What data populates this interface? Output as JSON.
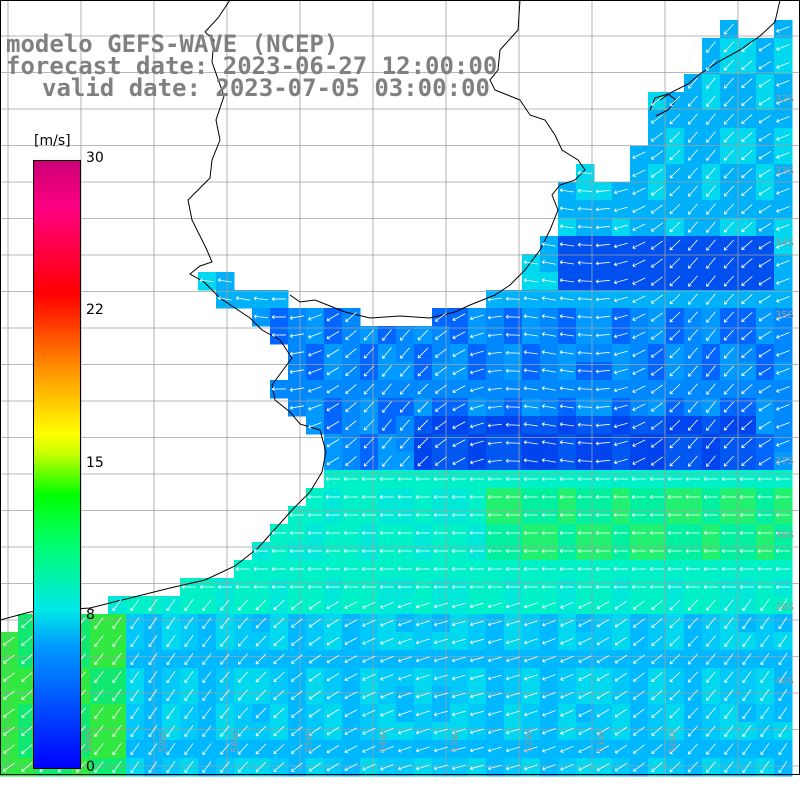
{
  "title": {
    "line1": "modelo GEFS-WAVE (NCEP)",
    "line2": "forecast date: 2023-06-27 12:00:00",
    "line3": "valid date: 2023-07-05 03:00:00"
  },
  "colorbar": {
    "unit": "[m/s]",
    "ticks": [
      "30",
      "22",
      "15",
      "8",
      "0"
    ],
    "tick_values": [
      30,
      22,
      15,
      8,
      0
    ],
    "colors": [
      "#0000ff",
      "#0099ff",
      "#00e8e8",
      "#00ff60",
      "#00ff00",
      "#ffff00",
      "#ff9900",
      "#ff0000",
      "#cc0077"
    ]
  },
  "lat_labels": [
    "32S",
    "33S",
    "34S",
    "35S",
    "37S",
    "38S",
    "39S",
    "40S"
  ],
  "lon_labels": [
    "59W",
    "58W",
    "56W",
    "55W",
    "54W",
    "53W",
    "52W",
    "51W",
    "50W"
  ],
  "colors": {
    "land": "#ffffff",
    "coast": "#000000",
    "grid": "#a0a0a0",
    "title": "#808080",
    "arrow": "#ffffff"
  }
}
